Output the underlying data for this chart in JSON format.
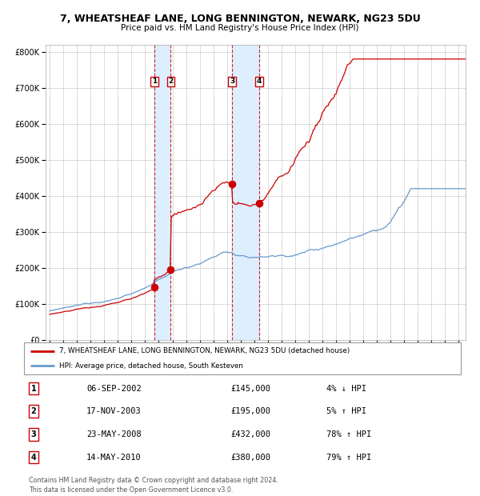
{
  "title": "7, WHEATSHEAF LANE, LONG BENNINGTON, NEWARK, NG23 5DU",
  "subtitle": "Price paid vs. HM Land Registry's House Price Index (HPI)",
  "legend_line1": "7, WHEATSHEAF LANE, LONG BENNINGTON, NEWARK, NG23 5DU (detached house)",
  "legend_line2": "HPI: Average price, detached house, South Kesteven",
  "footer1": "Contains HM Land Registry data © Crown copyright and database right 2024.",
  "footer2": "This data is licensed under the Open Government Licence v3.0.",
  "transactions": [
    {
      "num": 1,
      "date": "06-SEP-2002",
      "price": 145000,
      "pct": "4%",
      "dir": "↓",
      "year": 2002.68
    },
    {
      "num": 2,
      "date": "17-NOV-2003",
      "price": 195000,
      "pct": "5%",
      "dir": "↑",
      "year": 2003.88
    },
    {
      "num": 3,
      "date": "23-MAY-2008",
      "price": 432000,
      "pct": "78%",
      "dir": "↑",
      "year": 2008.39
    },
    {
      "num": 4,
      "date": "14-MAY-2010",
      "price": 380000,
      "pct": "79%",
      "dir": "↑",
      "year": 2010.37
    }
  ],
  "ylim": [
    0,
    820000
  ],
  "xlim_start": 1994.7,
  "xlim_end": 2025.5,
  "hpi_color": "#6699cc",
  "price_color": "#cc0000",
  "transaction_color": "#cc0000",
  "shade_color": "#ddeeff",
  "dashed_color": "#cc0000",
  "grid_color": "#cccccc",
  "bg_color": "#ffffff"
}
